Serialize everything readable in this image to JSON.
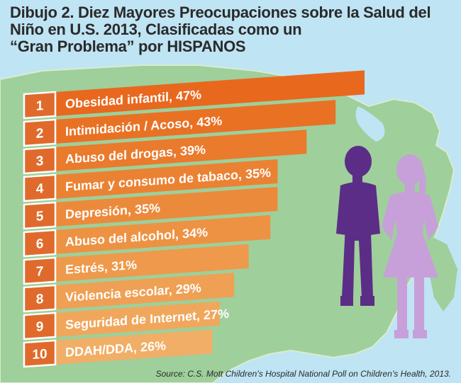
{
  "title": {
    "line1": "Dibujo 2. Diez Mayores Preocupaciones sobre la Salud del",
    "line2": "Niño en U.S. 2013, Clasificadas como un",
    "line3": "“Gran Problema” por HISPANOS"
  },
  "source": "Source: C.S. Mott Children’s Hospital National Poll on Children’s Health, 2013.",
  "colors": {
    "background": "#bfe4f4",
    "map": "#9fcf9b",
    "map_border": "#d8eccf",
    "number_box": "#e06a2c",
    "boy_silhouette": "#5b2d86",
    "girl_silhouette": "#c7a0d9"
  },
  "chart_data": {
    "type": "bar",
    "title": "Dibujo 2. Diez Mayores Preocupaciones sobre la Salud del Niño en U.S. 2013, Clasificadas como un “Gran Problema” por HISPANOS",
    "xlabel": "",
    "ylabel": "",
    "unit": "%",
    "ylim": [
      0,
      47
    ],
    "categories": [
      "Obesidad infantil",
      "Intimidación / Acoso",
      "Abuso del drogas",
      "Fumar y consumo de tabaco",
      "Depresión",
      "Abuso del alcohol",
      "Estrés",
      "Violencia escolar",
      "Seguridad de Internet",
      "DDAH/DDA"
    ],
    "values": [
      47,
      43,
      39,
      35,
      35,
      34,
      31,
      29,
      27,
      26
    ],
    "ranks": [
      "1",
      "2",
      "3",
      "4",
      "5",
      "6",
      "7",
      "8",
      "9",
      "10"
    ],
    "labels": [
      "Obesidad infantil, 47%",
      "Intimidación / Acoso, 43%",
      "Abuso del drogas, 39%",
      "Fumar y consumo de tabaco, 35%",
      "Depresión, 35%",
      "Abuso del alcohol, 34%",
      "Estrés, 31%",
      "Violencia escolar, 29%",
      "Seguridad de Internet, 27%",
      "DDAH/DDA, 26%"
    ],
    "bar_colors": [
      "#e8681e",
      "#e97124",
      "#ea7a2c",
      "#eb8233",
      "#ec8a3b",
      "#ed9243",
      "#ee994b",
      "#efa054",
      "#f0a75c",
      "#f1ae66"
    ]
  }
}
